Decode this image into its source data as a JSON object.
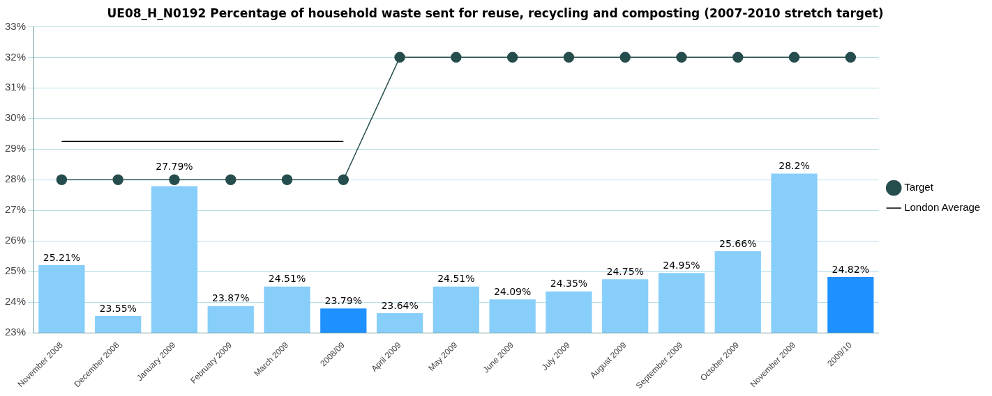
{
  "chart_data": {
    "type": "bar",
    "title": "UE08_H_N0192 Percentage of household waste sent for reuse, recycling and composting (2007-2010 stretch target)",
    "categories": [
      "November 2008",
      "December 2008",
      "January 2009",
      "February 2009",
      "March 2009",
      "2008/09",
      "April 2009",
      "May 2009",
      "June 2009",
      "July 2009",
      "August 2009",
      "September 2009",
      "October 2009",
      "November 2009",
      "2009/10"
    ],
    "series": [
      {
        "colors": [
          "#87cefa",
          "#87cefa",
          "#87cefa",
          "#87cefa",
          "#87cefa",
          "#1e90ff",
          "#87cefa",
          "#87cefa",
          "#87cefa",
          "#87cefa",
          "#87cefa",
          "#87cefa",
          "#87cefa",
          "#87cefa",
          "#1e90ff"
        ],
        "values": [
          25.21,
          23.55,
          27.79,
          23.87,
          24.51,
          23.79,
          23.64,
          24.51,
          24.09,
          24.35,
          24.75,
          24.95,
          25.66,
          28.2,
          24.82
        ],
        "value_labels": [
          "25.21%",
          "23.55%",
          "27.79%",
          "23.87%",
          "24.51%",
          "23.79%",
          "23.64%",
          "24.51%",
          "24.09%",
          "24.35%",
          "24.75%",
          "24.95%",
          "25.66%",
          "28.2%",
          "24.82%"
        ]
      },
      {
        "type": "line",
        "name": "Target",
        "color": "#264d4d",
        "marker": "circle",
        "values": [
          28,
          28,
          28,
          28,
          28,
          28,
          32,
          32,
          32,
          32,
          32,
          32,
          32,
          32,
          32
        ]
      },
      {
        "type": "line",
        "name": "London Average",
        "color": "#000000",
        "marker": "none",
        "values": [
          29.25,
          29.25,
          29.25,
          29.25,
          29.25,
          29.25,
          null,
          null,
          null,
          null,
          null,
          null,
          null,
          null,
          null
        ]
      }
    ],
    "ylim": [
      23,
      33
    ],
    "yticks": [
      {
        "value": 23,
        "label": "23%"
      },
      {
        "value": 24,
        "label": "24%"
      },
      {
        "value": 25,
        "label": "25%"
      },
      {
        "value": 26,
        "label": "26%"
      },
      {
        "value": 27,
        "label": "27%"
      },
      {
        "value": 28,
        "label": "28%"
      },
      {
        "value": 29,
        "label": "29%"
      },
      {
        "value": 30,
        "label": "30%"
      },
      {
        "value": 31,
        "label": "31%"
      },
      {
        "value": 32,
        "label": "32%"
      },
      {
        "value": 33,
        "label": "33%"
      }
    ],
    "grid": "y",
    "legend": "right"
  }
}
